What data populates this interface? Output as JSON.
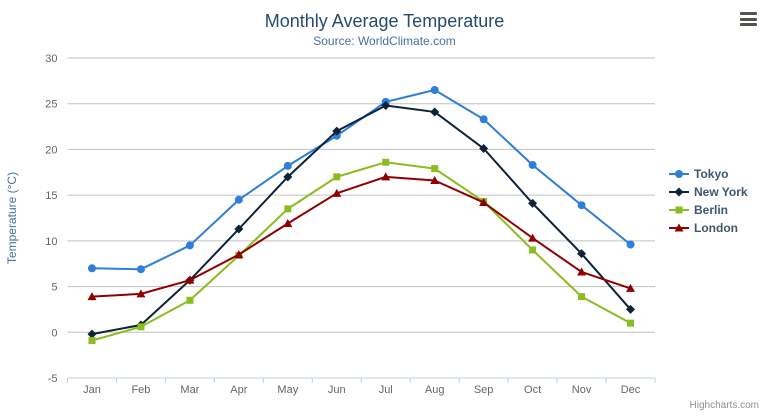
{
  "chart_data": {
    "type": "line",
    "title": "Monthly Average Temperature",
    "subtitle": "Source: WorldClimate.com",
    "xlabel": "",
    "ylabel": "Temperature (°C)",
    "ylim": [
      -5,
      30
    ],
    "ytick_step": 5,
    "grid": true,
    "legend_position": "right",
    "categories": [
      "Jan",
      "Feb",
      "Mar",
      "Apr",
      "May",
      "Jun",
      "Jul",
      "Aug",
      "Sep",
      "Oct",
      "Nov",
      "Dec"
    ],
    "series": [
      {
        "name": "Tokyo",
        "color": "#2f7ed8",
        "marker": "circle",
        "values": [
          7.0,
          6.9,
          9.5,
          14.5,
          18.2,
          21.5,
          25.2,
          26.5,
          23.3,
          18.3,
          13.9,
          9.6
        ]
      },
      {
        "name": "New York",
        "color": "#0d233a",
        "marker": "diamond",
        "values": [
          -0.2,
          0.8,
          5.7,
          11.3,
          17.0,
          22.0,
          24.8,
          24.1,
          20.1,
          14.1,
          8.6,
          2.5
        ]
      },
      {
        "name": "Berlin",
        "color": "#8bbc21",
        "marker": "square",
        "values": [
          -0.9,
          0.6,
          3.5,
          8.4,
          13.5,
          17.0,
          18.6,
          17.9,
          14.3,
          9.0,
          3.9,
          1.0
        ]
      },
      {
        "name": "London",
        "color": "#910000",
        "marker": "triangle",
        "values": [
          3.9,
          4.2,
          5.7,
          8.5,
          11.9,
          15.2,
          17.0,
          16.6,
          14.2,
          10.3,
          6.6,
          4.8
        ]
      }
    ],
    "colors": {
      "grid": "#C0C0C0",
      "axis_line": "#C0D0E0",
      "title": "#274b6d",
      "subtitle": "#4572A7",
      "axis_label": "#666666",
      "credits": "#909090"
    }
  },
  "icons": {
    "export_menu": "hamburger-menu-icon"
  },
  "credits": {
    "label": "Highcharts.com"
  }
}
